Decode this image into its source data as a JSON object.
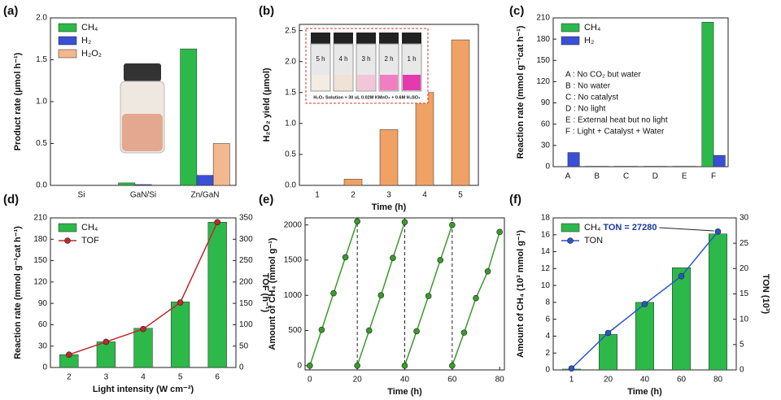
{
  "chart_data": [
    {
      "type": "bar",
      "label": "(a)",
      "ylabel": "Product rate (μmol h⁻¹)",
      "categories": [
        "Si",
        "GaN/Si",
        "Zn/GaN"
      ],
      "series": [
        {
          "name": "CH₄",
          "color": "#2db84a",
          "values": [
            0,
            0.03,
            1.63
          ]
        },
        {
          "name": "H₂",
          "color": "#3a4fd6",
          "values": [
            0,
            0.01,
            0.12
          ]
        },
        {
          "name": "H₂O₂",
          "color": "#f4b88e",
          "values": [
            0,
            0,
            0.5
          ]
        }
      ],
      "ylim": [
        0,
        2.0
      ],
      "yticks": [
        {
          "value": 0,
          "label": "0.0"
        },
        0.5,
        {
          "value": 1,
          "label": "1.0"
        },
        1.5,
        {
          "value": 2,
          "label": "2.0"
        }
      ],
      "legend": "upper left"
    },
    {
      "type": "bar",
      "label": "(b)",
      "ylabel": "H₂O₂ yield (μmol)",
      "xlabel": "Time (h)",
      "categories": [
        "1",
        "2",
        "3",
        "4",
        "5"
      ],
      "series": [
        {
          "name": "H₂O₂",
          "color": "#f0a264",
          "values": [
            0,
            0.1,
            0.9,
            1.5,
            2.35
          ]
        }
      ],
      "ylim": [
        0,
        2.6
      ],
      "yticks": [
        {
          "value": 0,
          "label": "0.0"
        },
        0.5,
        {
          "value": 1,
          "label": "1.0"
        },
        1.5,
        {
          "value": 2,
          "label": "2.0"
        },
        2.5
      ],
      "inset_labels": [
        "5 h",
        "4 h",
        "3 h",
        "2 h",
        "1 h"
      ],
      "inset_caption": "H₂O₂ Solution + 30 uL 0.02M KMnO₄ + 0.6M H₂SO₄"
    },
    {
      "type": "bar",
      "label": "(c)",
      "ylabel": "Reaction rate (mmol g⁻¹cat h⁻¹)",
      "categories": [
        "A",
        "B",
        "C",
        "D",
        "E",
        "F"
      ],
      "series": [
        {
          "name": "CH₄",
          "color": "#2db84a",
          "values": [
            0,
            0.5,
            0.5,
            0.5,
            0.5,
            204
          ]
        },
        {
          "name": "H₂",
          "color": "#3a4fd6",
          "values": [
            20,
            0.5,
            0.5,
            0.5,
            0.5,
            16
          ]
        }
      ],
      "ylim": [
        0,
        210
      ],
      "yticks": [
        0,
        30,
        60,
        90,
        120,
        150,
        180,
        210
      ],
      "legend": "upper left",
      "annotations": [
        "A : No CO₂ but water",
        "B : No water",
        "C : No catalyst",
        "D : No light",
        "E : External heat but no light",
        "F : Light + Catalyst + Water"
      ]
    },
    {
      "type": "bar_line",
      "label": "(d)",
      "ylabel": "Reaction rate (mmol g⁻¹cat h⁻¹)",
      "y2label": "TOF (h⁻¹)",
      "xlabel": "Light intensity (W cm⁻²)",
      "categories": [
        "2",
        "3",
        "4",
        "5",
        "6"
      ],
      "series": [
        {
          "name": "CH₄",
          "color": "#2db84a",
          "values": [
            18,
            36,
            55,
            92,
            204
          ]
        },
        {
          "name": "TOF",
          "color": "#c0282b",
          "type": "line",
          "axis": "y2",
          "values": [
            30,
            60,
            90,
            152,
            340
          ]
        }
      ],
      "ylim": [
        0,
        210
      ],
      "yticks": [
        0,
        30,
        60,
        90,
        120,
        150,
        180,
        210
      ],
      "y2lim": [
        0,
        350
      ],
      "y2ticks": [
        0,
        50,
        100,
        150,
        200,
        250,
        300,
        350
      ],
      "legend": "upper left"
    },
    {
      "type": "line",
      "label": "(e)",
      "ylabel": "Amount of CH₄ (mmol g⁻¹)",
      "xlabel": "Time (h)",
      "x": [
        0,
        5,
        10,
        15,
        20,
        20,
        20,
        25,
        30,
        35,
        40,
        40,
        40,
        45,
        50,
        55,
        60,
        60,
        60,
        65,
        70,
        75,
        80
      ],
      "series": [
        {
          "color": "#3a9a2a",
          "values": [
            0,
            510,
            1030,
            1540,
            2050,
            null,
            0,
            500,
            1000,
            1530,
            2040,
            null,
            0,
            490,
            990,
            1500,
            2000,
            null,
            0,
            470,
            960,
            1340,
            1900
          ]
        }
      ],
      "xlim": [
        -2,
        82
      ],
      "xticks": [
        0,
        20,
        40,
        60,
        80
      ],
      "ylim": [
        -60,
        2100
      ],
      "yticks": [
        0,
        500,
        1000,
        1500,
        2000
      ],
      "vlines": [
        20,
        40,
        60
      ]
    },
    {
      "type": "bar_line",
      "label": "(f)",
      "ylabel": "Amount of CH₄ (10³ mmol g⁻¹)",
      "y2label": "TON (10³)",
      "xlabel": "Time (h)",
      "categories": [
        "1",
        "20",
        "40",
        "60",
        "80"
      ],
      "series": [
        {
          "name": "CH₄",
          "color": "#2db84a",
          "values": [
            0.1,
            4.2,
            8.0,
            12.1,
            16.1
          ]
        },
        {
          "name": "TON",
          "color": "#2a55c8",
          "type": "line",
          "axis": "y2",
          "values": [
            0.3,
            7.3,
            13,
            18.5,
            27.3
          ]
        }
      ],
      "ylim": [
        0,
        18
      ],
      "yticks": [
        0,
        2,
        4,
        6,
        8,
        10,
        12,
        14,
        16,
        18
      ],
      "y2lim": [
        0,
        30
      ],
      "y2ticks": [
        0,
        5,
        10,
        15,
        20,
        25,
        30
      ],
      "legend": "upper left",
      "annotation": "TON = 27280"
    }
  ]
}
